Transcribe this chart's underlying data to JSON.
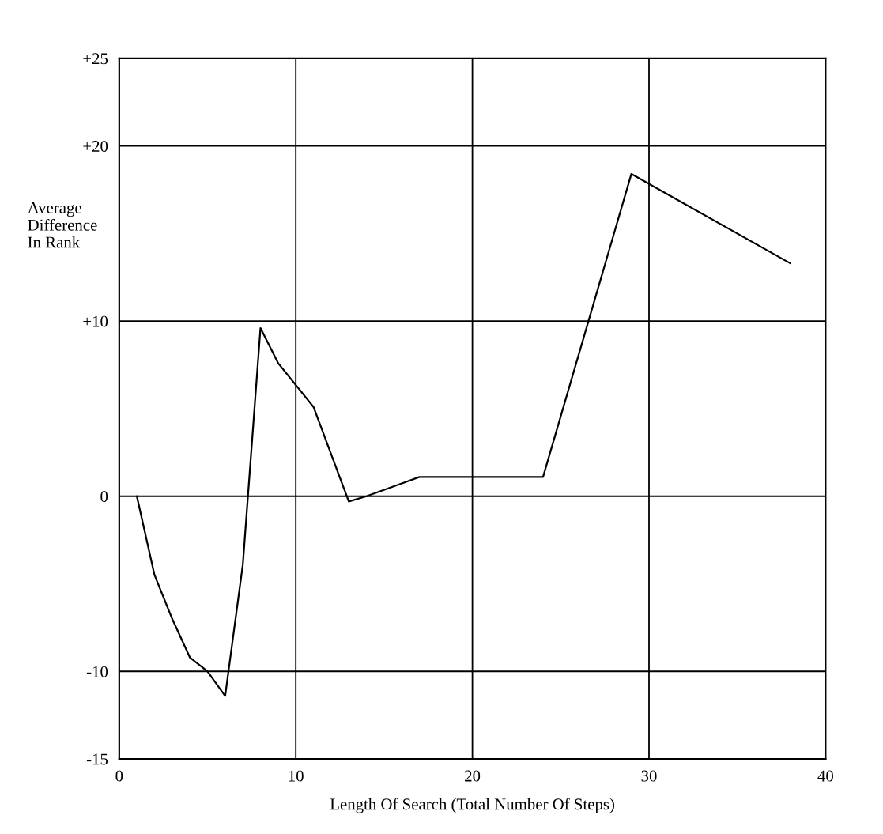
{
  "chart_data": {
    "type": "line",
    "xlabel": "Length Of Search (Total Number Of Steps)",
    "ylabel": "Average\nDifference\nIn Rank",
    "x": [
      1,
      2,
      3,
      4,
      5,
      6,
      7,
      8,
      9,
      11,
      13,
      14,
      17,
      24,
      29,
      38
    ],
    "series": [
      {
        "color": "#000000",
        "values": [
          0,
          -4.5,
          -7,
          -9.2,
          -10,
          -11.4,
          -3.9,
          9.6,
          7.6,
          5.1,
          -0.3,
          0,
          1.1,
          1.1,
          18.4,
          13.3
        ]
      }
    ],
    "xlim": [
      0,
      40
    ],
    "xticks": [
      0,
      10,
      20,
      30,
      40
    ],
    "ylim": [
      -15,
      25
    ],
    "yticks": [
      {
        "value": 25,
        "label": "+25"
      },
      {
        "value": 20,
        "label": "+20"
      },
      {
        "value": 10,
        "label": "+10"
      },
      0,
      -10,
      -15
    ],
    "grid": true,
    "marker": "none",
    "line_style": "solid"
  }
}
